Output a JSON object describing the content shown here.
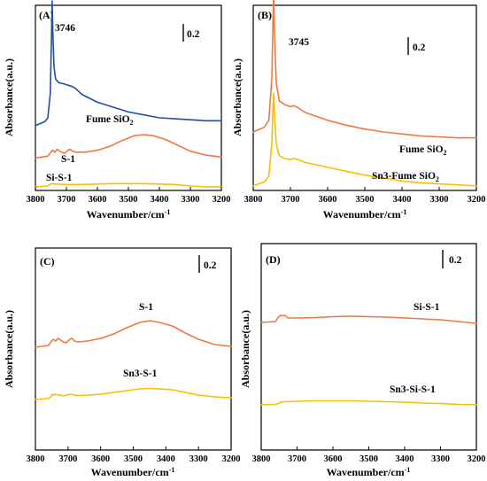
{
  "colors": {
    "blue": "#1f4fa3",
    "orange": "#f07840",
    "yellow": "#f6c000"
  },
  "chart_data": [
    {
      "type": "line",
      "panel": "(A)",
      "xlabel": "Wavenumber/cm",
      "ylabel": "Absorbance(a.u.)",
      "x_ticks": [
        "3800",
        "3700",
        "3600",
        "3500",
        "3400",
        "3300",
        "3200"
      ],
      "xlim": [
        3800,
        3200
      ],
      "scale_bar": "0.2",
      "annotations": [
        "3746"
      ],
      "series": [
        {
          "name": "Fume SiO2",
          "color": "blue",
          "x": [
            3800,
            3770,
            3760,
            3752,
            3748,
            3746,
            3744,
            3740,
            3735,
            3725,
            3710,
            3700,
            3690,
            3680,
            3670,
            3650,
            3600,
            3550,
            3500,
            3450,
            3400,
            3350,
            3300,
            3250,
            3200
          ],
          "y": [
            0.22,
            0.26,
            0.3,
            0.55,
            1.15,
            1.5,
            1.2,
            0.82,
            0.7,
            0.66,
            0.65,
            0.64,
            0.63,
            0.62,
            0.6,
            0.54,
            0.46,
            0.41,
            0.36,
            0.33,
            0.3,
            0.29,
            0.28,
            0.27,
            0.27
          ]
        },
        {
          "name": "S-1",
          "color": "orange",
          "x": [
            3800,
            3760,
            3750,
            3745,
            3738,
            3730,
            3722,
            3715,
            3705,
            3695,
            3688,
            3680,
            3670,
            3640,
            3600,
            3560,
            3520,
            3480,
            3450,
            3420,
            3380,
            3340,
            3300,
            3250,
            3200
          ],
          "y": [
            0.06,
            0.08,
            0.12,
            0.14,
            0.12,
            0.15,
            0.13,
            0.12,
            0.11,
            0.14,
            0.15,
            0.13,
            0.12,
            0.12,
            0.14,
            0.18,
            0.24,
            0.29,
            0.3,
            0.29,
            0.25,
            0.19,
            0.13,
            0.09,
            0.07
          ]
        },
        {
          "name": "Si-S-1",
          "color": "yellow",
          "x": [
            3800,
            3760,
            3752,
            3745,
            3738,
            3730,
            3700,
            3650,
            3600,
            3550,
            3500,
            3450,
            3400,
            3350,
            3300,
            3250,
            3200
          ],
          "y": [
            -0.01,
            0.0,
            0.02,
            0.025,
            0.02,
            0.02,
            0.015,
            0.015,
            0.02,
            0.025,
            0.025,
            0.025,
            0.02,
            0.015,
            0.0,
            -0.01,
            -0.01
          ]
        }
      ]
    },
    {
      "type": "line",
      "panel": "(B)",
      "xlabel": "Wavenumber/cm",
      "ylabel": "Absorbance(a.u.)",
      "x_ticks": [
        "3800",
        "3700",
        "3600",
        "3500",
        "3400",
        "3300",
        "3200"
      ],
      "xlim": [
        3800,
        3200
      ],
      "scale_bar": "0.2",
      "annotations": [
        "3745"
      ],
      "series": [
        {
          "name": "Fume SiO2",
          "color": "orange",
          "x": [
            3800,
            3770,
            3758,
            3750,
            3747,
            3745,
            3743,
            3738,
            3730,
            3715,
            3700,
            3690,
            3680,
            3660,
            3600,
            3550,
            3500,
            3450,
            3400,
            3350,
            3300,
            3250,
            3200
          ],
          "y": [
            0.3,
            0.35,
            0.42,
            0.85,
            1.45,
            1.72,
            1.35,
            0.8,
            0.62,
            0.58,
            0.56,
            0.57,
            0.55,
            0.5,
            0.42,
            0.37,
            0.33,
            0.3,
            0.28,
            0.26,
            0.25,
            0.24,
            0.24
          ]
        },
        {
          "name": "Sn3-Fume SiO2",
          "color": "yellow",
          "x": [
            3800,
            3770,
            3758,
            3750,
            3747,
            3745,
            3743,
            3738,
            3730,
            3715,
            3700,
            3690,
            3680,
            3660,
            3600,
            3550,
            3500,
            3450,
            3400,
            3350,
            3300,
            3250,
            3200
          ],
          "y": [
            0.02,
            0.06,
            0.12,
            0.45,
            0.82,
            0.97,
            0.78,
            0.45,
            0.33,
            0.3,
            0.29,
            0.3,
            0.29,
            0.26,
            0.21,
            0.17,
            0.13,
            0.1,
            0.07,
            0.05,
            0.04,
            0.03,
            0.02
          ]
        }
      ]
    },
    {
      "type": "line",
      "panel": "(C)",
      "xlabel": "Wavenumber/cm",
      "ylabel": "Absorbance(a.u.)",
      "x_ticks": [
        "3800",
        "3700",
        "3600",
        "3500",
        "3400",
        "3300",
        "3200"
      ],
      "xlim": [
        3800,
        3200
      ],
      "scale_bar": "0.2",
      "series": [
        {
          "name": "S-1",
          "color": "orange",
          "x": [
            3800,
            3760,
            3750,
            3745,
            3738,
            3730,
            3722,
            3715,
            3705,
            3695,
            3688,
            3680,
            3670,
            3640,
            3600,
            3560,
            3520,
            3480,
            3450,
            3420,
            3380,
            3340,
            3300,
            3250,
            3200
          ],
          "y": [
            0.06,
            0.08,
            0.13,
            0.15,
            0.13,
            0.16,
            0.14,
            0.12,
            0.11,
            0.15,
            0.16,
            0.13,
            0.12,
            0.13,
            0.16,
            0.21,
            0.28,
            0.34,
            0.36,
            0.34,
            0.3,
            0.22,
            0.15,
            0.09,
            0.07
          ]
        },
        {
          "name": "Sn3-S-1",
          "color": "yellow",
          "x": [
            3800,
            3760,
            3752,
            3748,
            3744,
            3738,
            3730,
            3722,
            3715,
            3705,
            3695,
            3688,
            3680,
            3670,
            3640,
            3600,
            3560,
            3520,
            3480,
            3450,
            3420,
            3380,
            3340,
            3300,
            3250,
            3200
          ],
          "y": [
            -0.01,
            0.0,
            0.02,
            0.05,
            0.04,
            0.05,
            0.04,
            0.04,
            0.03,
            0.04,
            0.05,
            0.05,
            0.04,
            0.035,
            0.04,
            0.05,
            0.07,
            0.09,
            0.11,
            0.115,
            0.11,
            0.1,
            0.07,
            0.04,
            0.02,
            0.01
          ]
        }
      ]
    },
    {
      "type": "line",
      "panel": "(D)",
      "xlabel": "Wavenumber/cm",
      "ylabel": "Absorbance(a.u.)",
      "x_ticks": [
        "3800",
        "3700",
        "3600",
        "3500",
        "3400",
        "3300",
        "3200"
      ],
      "xlim": [
        3800,
        3200
      ],
      "scale_bar": "0.2",
      "series": [
        {
          "name": "Si-S-1",
          "color": "orange",
          "x": [
            3800,
            3760,
            3752,
            3746,
            3740,
            3734,
            3725,
            3700,
            3650,
            3600,
            3550,
            3500,
            3450,
            3400,
            3350,
            3300,
            3250,
            3200
          ],
          "y": [
            0.0,
            0.01,
            0.06,
            0.08,
            0.075,
            0.08,
            0.05,
            0.05,
            0.055,
            0.065,
            0.07,
            0.065,
            0.06,
            0.05,
            0.04,
            0.03,
            0.01,
            -0.01
          ]
        },
        {
          "name": "Sn3-Si-S-1",
          "color": "yellow",
          "x": [
            3800,
            3760,
            3752,
            3745,
            3738,
            3730,
            3700,
            3650,
            3600,
            3550,
            3500,
            3450,
            3400,
            3350,
            3300,
            3250,
            3200
          ],
          "y": [
            0.0,
            0.005,
            0.015,
            0.03,
            0.035,
            0.035,
            0.04,
            0.045,
            0.045,
            0.045,
            0.04,
            0.035,
            0.03,
            0.02,
            0.015,
            0.005,
            0.0
          ]
        }
      ]
    }
  ]
}
